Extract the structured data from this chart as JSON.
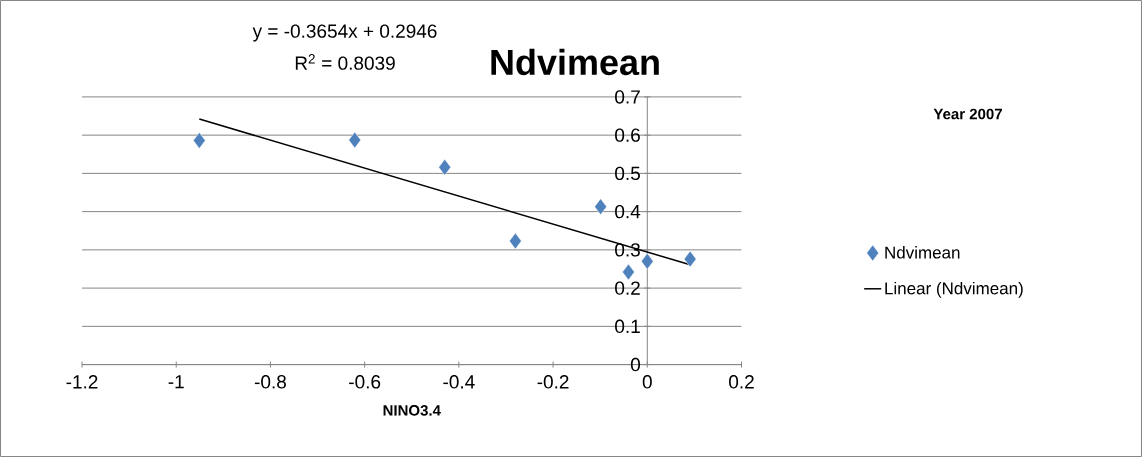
{
  "chart_data": {
    "type": "scatter",
    "title": "Ndvimean",
    "xlabel": "NINO3.4",
    "annotations": [
      "y = -0.3654x + 0.2946",
      "R$^{2}$ = 0.8039",
      "Year 2007"
    ],
    "series": [
      {
        "name": "Ndvimean",
        "color": "#4f81bd",
        "marker": "diamond",
        "x": [
          -0.951,
          -0.621,
          -0.43,
          -0.28,
          -0.099,
          -0.04,
          0.0,
          0.091
        ],
        "values": [
          0.586,
          0.587,
          0.516,
          0.323,
          0.413,
          0.242,
          0.27,
          0.276
        ]
      },
      {
        "name": "Linear (Ndvimean)",
        "type": "line",
        "color": "#000000",
        "line_style": "solid",
        "x": [
          -0.951,
          0.091
        ],
        "values": [
          0.642,
          0.261
        ]
      }
    ],
    "xlim": [
      -1.2,
      0.2
    ],
    "xticks": [
      -1.2,
      -1,
      -0.8,
      -0.6,
      -0.4,
      -0.2,
      0,
      0.2
    ],
    "ylim": [
      0,
      0.7
    ],
    "yticks": [
      0,
      0.1,
      0.2,
      0.3,
      0.4,
      0.5,
      0.6,
      0.7
    ],
    "grid": "y",
    "legend": "right"
  }
}
